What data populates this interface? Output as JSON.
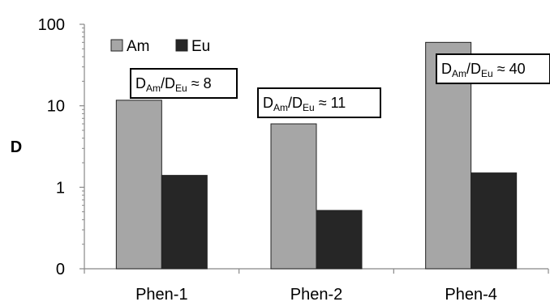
{
  "chart_data": {
    "type": "bar",
    "ylabel": "D",
    "yscale": "log",
    "ylim": [
      0.1,
      100
    ],
    "yticks": [
      {
        "value": 0.1,
        "label": "0"
      },
      {
        "value": 1,
        "label": "1"
      },
      {
        "value": 10,
        "label": "10"
      },
      {
        "value": 100,
        "label": "100"
      }
    ],
    "categories": [
      "Phen-1",
      "Phen-2",
      "Phen-4"
    ],
    "series": [
      {
        "name": "Am",
        "color": "#a6a6a6",
        "values": [
          11.7,
          6.0,
          60
        ]
      },
      {
        "name": "Eu",
        "color": "#262626",
        "values": [
          1.4,
          0.52,
          1.5
        ]
      }
    ],
    "legend_placement": "top-left",
    "grid": false,
    "annotations": [
      {
        "category": "Phen-1",
        "num": "D",
        "num_sub": "Am",
        "den": "D",
        "den_sub": "Eu",
        "rel": " ≈ ",
        "value": "8"
      },
      {
        "category": "Phen-2",
        "num": "D",
        "num_sub": "Am",
        "den": "D",
        "den_sub": "Eu",
        "rel": " ≈ ",
        "value": "11"
      },
      {
        "category": "Phen-4",
        "num": "D",
        "num_sub": "Am",
        "den": "D",
        "den_sub": "Eu",
        "rel": " ≈ ",
        "value": "40"
      }
    ]
  }
}
